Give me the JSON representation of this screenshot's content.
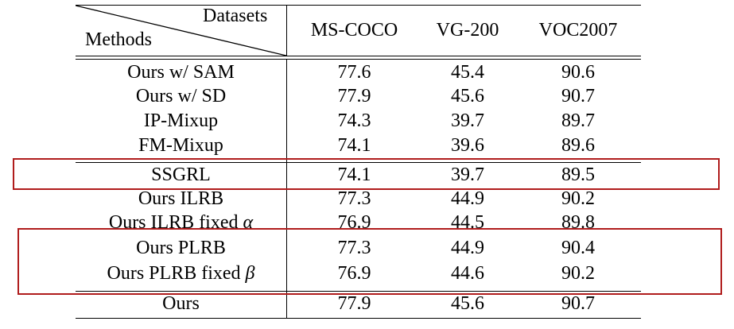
{
  "header": {
    "datasets_label": "Datasets",
    "methods_label": "Methods",
    "columns": [
      "MS-COCO",
      "VG-200",
      "VOC2007"
    ]
  },
  "rows": [
    {
      "method": "Ours w/ SAM",
      "coco": "77.6",
      "vg": "45.4",
      "voc": "90.6"
    },
    {
      "method": "Ours w/ SD",
      "coco": "77.9",
      "vg": "45.6",
      "voc": "90.7"
    },
    {
      "method": "IP-Mixup",
      "coco": "74.3",
      "vg": "39.7",
      "voc": "89.7"
    },
    {
      "method": "FM-Mixup",
      "coco": "74.1",
      "vg": "39.6",
      "voc": "89.6"
    },
    {
      "method": "SSGRL",
      "coco": "74.1",
      "vg": "39.7",
      "voc": "89.5"
    },
    {
      "method": "Ours ILRB",
      "coco": "77.3",
      "vg": "44.9",
      "voc": "90.2"
    },
    {
      "method": "Ours ILRB fixed ",
      "symbol": "α",
      "coco": "76.9",
      "vg": "44.5",
      "voc": "89.8"
    },
    {
      "method": "Ours PLRB",
      "coco": "77.3",
      "vg": "44.9",
      "voc": "90.4"
    },
    {
      "method": "Ours PLRB fixed ",
      "symbol": "β",
      "coco": "76.9",
      "vg": "44.6",
      "voc": "90.2"
    },
    {
      "method": "Ours",
      "coco": "77.9",
      "vg": "45.6",
      "voc": "90.7"
    }
  ],
  "colors": {
    "highlight_box": "#b01c1c",
    "rule": "#000000"
  }
}
